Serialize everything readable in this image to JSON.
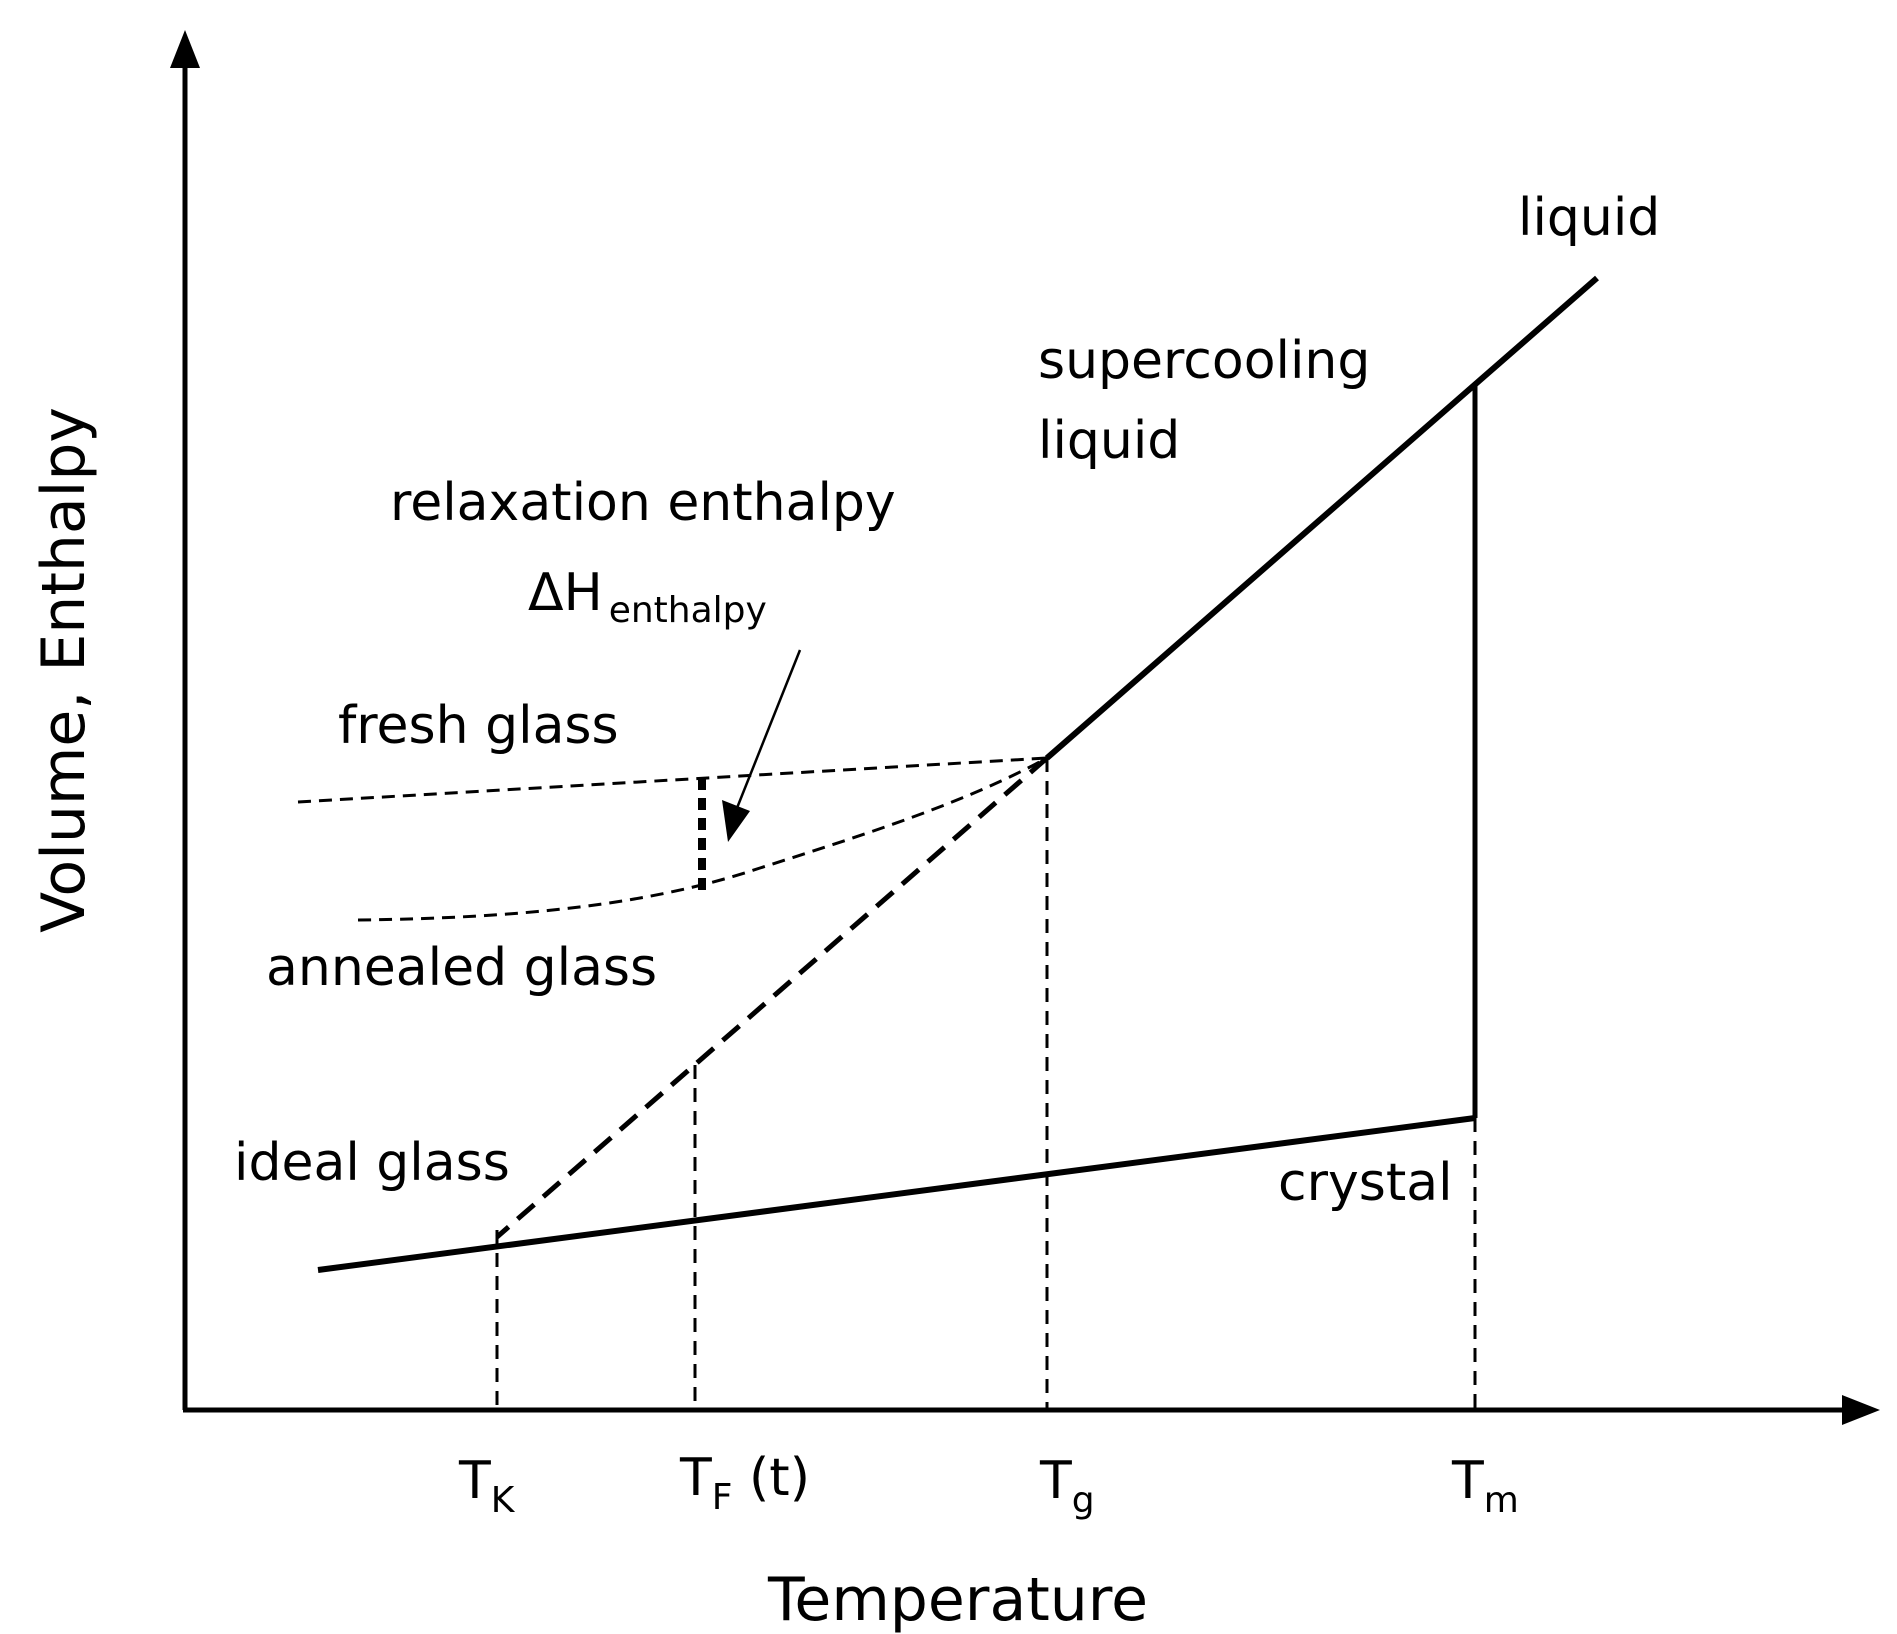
{
  "axes": {
    "x_title": "Temperature",
    "y_title": "Volume, Enthalpy"
  },
  "ticks": [
    {
      "main": "T",
      "sub": "K",
      "suffix": ""
    },
    {
      "main": "T",
      "sub": "F",
      "suffix": " (t)"
    },
    {
      "main": "T",
      "sub": "g",
      "suffix": ""
    },
    {
      "main": "T",
      "sub": "m",
      "suffix": ""
    }
  ],
  "labels": {
    "liquid": "liquid",
    "supercooling_line1": "supercooling",
    "supercooling_line2": "liquid",
    "relaxation_line1": "relaxation enthalpy",
    "relaxation_delta": "ΔH",
    "relaxation_sub": "enthalpy",
    "fresh_glass": "fresh glass",
    "annealed_glass": "annealed glass",
    "ideal_glass": "ideal glass",
    "crystal": "crystal"
  },
  "colors": {
    "ink": "#000000",
    "background": "#ffffff"
  }
}
